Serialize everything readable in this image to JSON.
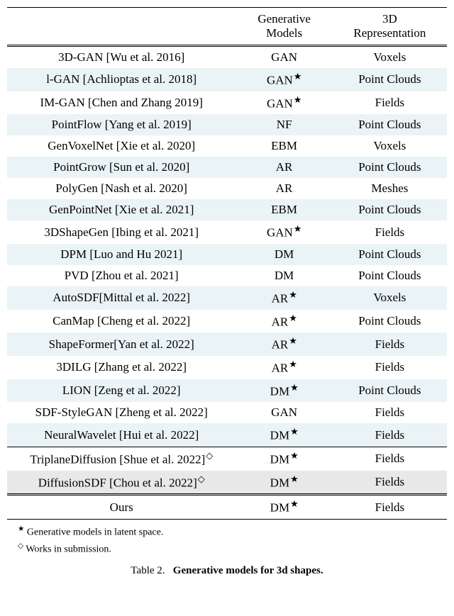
{
  "headers": {
    "col1_line1": "",
    "col2_line1": "Generative",
    "col3_line1": "3D",
    "col1_line2": "",
    "col2_line2": "Models",
    "col3_line2": "Representation"
  },
  "rows": [
    {
      "method": "3D-GAN [Wu et al. 2016]",
      "model": "GAN",
      "star": false,
      "diamond": false,
      "rep": "Voxels",
      "alt": false
    },
    {
      "method": "l-GAN [Achlioptas et al. 2018]",
      "model": "GAN",
      "star": true,
      "diamond": false,
      "rep": "Point Clouds",
      "alt": true
    },
    {
      "method": "IM-GAN [Chen and Zhang 2019]",
      "model": "GAN",
      "star": true,
      "diamond": false,
      "rep": "Fields",
      "alt": false
    },
    {
      "method": "PointFlow [Yang et al. 2019]",
      "model": "NF",
      "star": false,
      "diamond": false,
      "rep": "Point Clouds",
      "alt": true
    },
    {
      "method": "GenVoxelNet [Xie et al. 2020]",
      "model": "EBM",
      "star": false,
      "diamond": false,
      "rep": "Voxels",
      "alt": false
    },
    {
      "method": "PointGrow [Sun et al. 2020]",
      "model": "AR",
      "star": false,
      "diamond": false,
      "rep": "Point Clouds",
      "alt": true
    },
    {
      "method": "PolyGen [Nash et al. 2020]",
      "model": "AR",
      "star": false,
      "diamond": false,
      "rep": "Meshes",
      "alt": false
    },
    {
      "method": "GenPointNet [Xie et al. 2021]",
      "model": "EBM",
      "star": false,
      "diamond": false,
      "rep": "Point Clouds",
      "alt": true
    },
    {
      "method": "3DShapeGen [Ibing et al. 2021]",
      "model": "GAN",
      "star": true,
      "diamond": false,
      "rep": "Fields",
      "alt": false
    },
    {
      "method": "DPM [Luo and Hu 2021]",
      "model": "DM",
      "star": false,
      "diamond": false,
      "rep": "Point Clouds",
      "alt": true
    },
    {
      "method": "PVD [Zhou et al. 2021]",
      "model": "DM",
      "star": false,
      "diamond": false,
      "rep": "Point Clouds",
      "alt": false
    },
    {
      "method": "AutoSDF[Mittal et al. 2022]",
      "model": "AR",
      "star": true,
      "diamond": false,
      "rep": "Voxels",
      "alt": true
    },
    {
      "method": "CanMap [Cheng et al. 2022]",
      "model": "AR",
      "star": true,
      "diamond": false,
      "rep": "Point Clouds",
      "alt": false
    },
    {
      "method": "ShapeFormer[Yan et al. 2022]",
      "model": "AR",
      "star": true,
      "diamond": false,
      "rep": "Fields",
      "alt": true
    },
    {
      "method": "3DILG [Zhang et al. 2022]",
      "model": "AR",
      "star": true,
      "diamond": false,
      "rep": "Fields",
      "alt": false
    },
    {
      "method": "LION [Zeng et al. 2022]",
      "model": "DM",
      "star": true,
      "diamond": false,
      "rep": "Point Clouds",
      "alt": true
    },
    {
      "method": "SDF-StyleGAN [Zheng et al. 2022]",
      "model": "GAN",
      "star": false,
      "diamond": false,
      "rep": "Fields",
      "alt": false
    },
    {
      "method": "NeuralWavelet [Hui et al. 2022]",
      "model": "DM",
      "star": true,
      "diamond": false,
      "rep": "Fields",
      "alt": true
    }
  ],
  "rows2": [
    {
      "method": "TriplaneDiffusion [Shue et al. 2022]",
      "model": "DM",
      "star": true,
      "diamond": true,
      "rep": "Fields",
      "alt": false
    },
    {
      "method": "DiffusionSDF [Chou et al. 2022]",
      "model": "DM",
      "star": true,
      "diamond": true,
      "rep": "Fields",
      "altGray": true
    }
  ],
  "rowOurs": {
    "method": "Ours",
    "model": "DM",
    "star": true,
    "rep": "Fields"
  },
  "footnotes": {
    "star": "Generative models in latent space.",
    "diamond": "Works in submission."
  },
  "caption": {
    "label": "Table 2.",
    "title": "Generative models for 3d shapes."
  },
  "symbols": {
    "star": "★",
    "diamond": "◇"
  },
  "colors": {
    "altBlue": "#eaf3f6",
    "altGray": "#e8e8e8",
    "background": "#ffffff",
    "text": "#000000"
  }
}
